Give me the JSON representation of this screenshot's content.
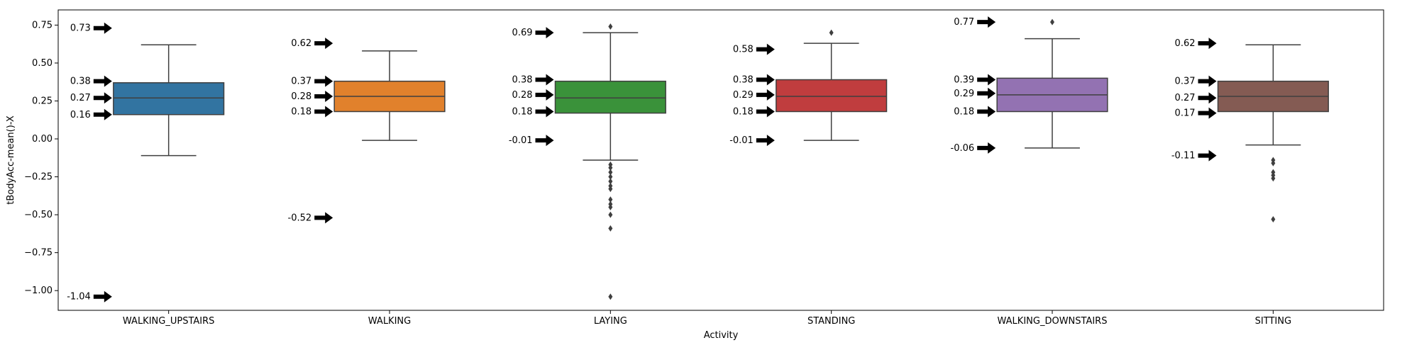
{
  "chart_data": {
    "type": "box",
    "xlabel": "Activity",
    "ylabel": "tBodyAcc-mean()-X",
    "ylim": [
      -1.13,
      0.85
    ],
    "yticks": [
      0.75,
      0.5,
      0.25,
      0.0,
      -0.25,
      -0.5,
      -0.75,
      -1.0
    ],
    "ytick_labels": [
      "0.75",
      "0.50",
      "0.25",
      "0.00",
      "−0.25",
      "−0.50",
      "−0.75",
      "−1.00"
    ],
    "categories": [
      {
        "name": "WALKING_UPSTAIRS",
        "color": "#3274a1",
        "whisker_low": -0.11,
        "q1": 0.16,
        "median": 0.27,
        "q3": 0.37,
        "whisker_high": 0.62,
        "outliers": [],
        "annotations": [
          {
            "label": "0.73",
            "value": 0.73
          },
          {
            "label": "0.38",
            "value": 0.38
          },
          {
            "label": "0.27",
            "value": 0.27
          },
          {
            "label": "0.16",
            "value": 0.16
          },
          {
            "label": "-1.04",
            "value": -1.04
          }
        ]
      },
      {
        "name": "WALKING",
        "color": "#e1812c",
        "whisker_low": -0.01,
        "q1": 0.18,
        "median": 0.28,
        "q3": 0.38,
        "whisker_high": 0.58,
        "outliers": [],
        "annotations": [
          {
            "label": "0.62",
            "value": 0.63
          },
          {
            "label": "0.37",
            "value": 0.38
          },
          {
            "label": "0.28",
            "value": 0.28
          },
          {
            "label": "0.18",
            "value": 0.18
          },
          {
            "label": "-0.52",
            "value": -0.52
          }
        ]
      },
      {
        "name": "LAYING",
        "color": "#3a923a",
        "whisker_low": -0.14,
        "q1": 0.17,
        "median": 0.27,
        "q3": 0.38,
        "whisker_high": 0.7,
        "outliers": [
          0.74,
          -0.17,
          -0.19,
          -0.22,
          -0.25,
          -0.28,
          -0.31,
          -0.33,
          -0.4,
          -0.43,
          -0.45,
          -0.5,
          -0.59,
          -1.04
        ],
        "annotations": [
          {
            "label": "0.69",
            "value": 0.7
          },
          {
            "label": "0.38",
            "value": 0.39
          },
          {
            "label": "0.28",
            "value": 0.29
          },
          {
            "label": "0.18",
            "value": 0.18
          },
          {
            "label": "-0.01",
            "value": -0.01
          }
        ]
      },
      {
        "name": "STANDING",
        "color": "#c03d3e",
        "whisker_low": -0.01,
        "q1": 0.18,
        "median": 0.28,
        "q3": 0.39,
        "whisker_high": 0.63,
        "outliers": [
          0.7
        ],
        "annotations": [
          {
            "label": "0.58",
            "value": 0.59
          },
          {
            "label": "0.38",
            "value": 0.39
          },
          {
            "label": "0.29",
            "value": 0.29
          },
          {
            "label": "0.18",
            "value": 0.18
          },
          {
            "label": "-0.01",
            "value": -0.01
          }
        ]
      },
      {
        "name": "WALKING_DOWNSTAIRS",
        "color": "#9372b2",
        "whisker_low": -0.06,
        "q1": 0.18,
        "median": 0.29,
        "q3": 0.4,
        "whisker_high": 0.66,
        "outliers": [
          0.77
        ],
        "annotations": [
          {
            "label": "0.77",
            "value": 0.77
          },
          {
            "label": "0.39",
            "value": 0.39
          },
          {
            "label": "0.29",
            "value": 0.3
          },
          {
            "label": "0.18",
            "value": 0.18
          },
          {
            "label": "-0.06",
            "value": -0.06
          }
        ]
      },
      {
        "name": "SITTING",
        "color": "#845b53",
        "whisker_low": -0.04,
        "q1": 0.18,
        "median": 0.28,
        "q3": 0.38,
        "whisker_high": 0.62,
        "outliers": [
          -0.14,
          -0.16,
          -0.22,
          -0.24,
          -0.26,
          -0.53
        ],
        "annotations": [
          {
            "label": "0.62",
            "value": 0.63
          },
          {
            "label": "0.37",
            "value": 0.38
          },
          {
            "label": "0.27",
            "value": 0.27
          },
          {
            "label": "0.17",
            "value": 0.17
          },
          {
            "label": "-0.11",
            "value": -0.11
          }
        ]
      }
    ]
  }
}
